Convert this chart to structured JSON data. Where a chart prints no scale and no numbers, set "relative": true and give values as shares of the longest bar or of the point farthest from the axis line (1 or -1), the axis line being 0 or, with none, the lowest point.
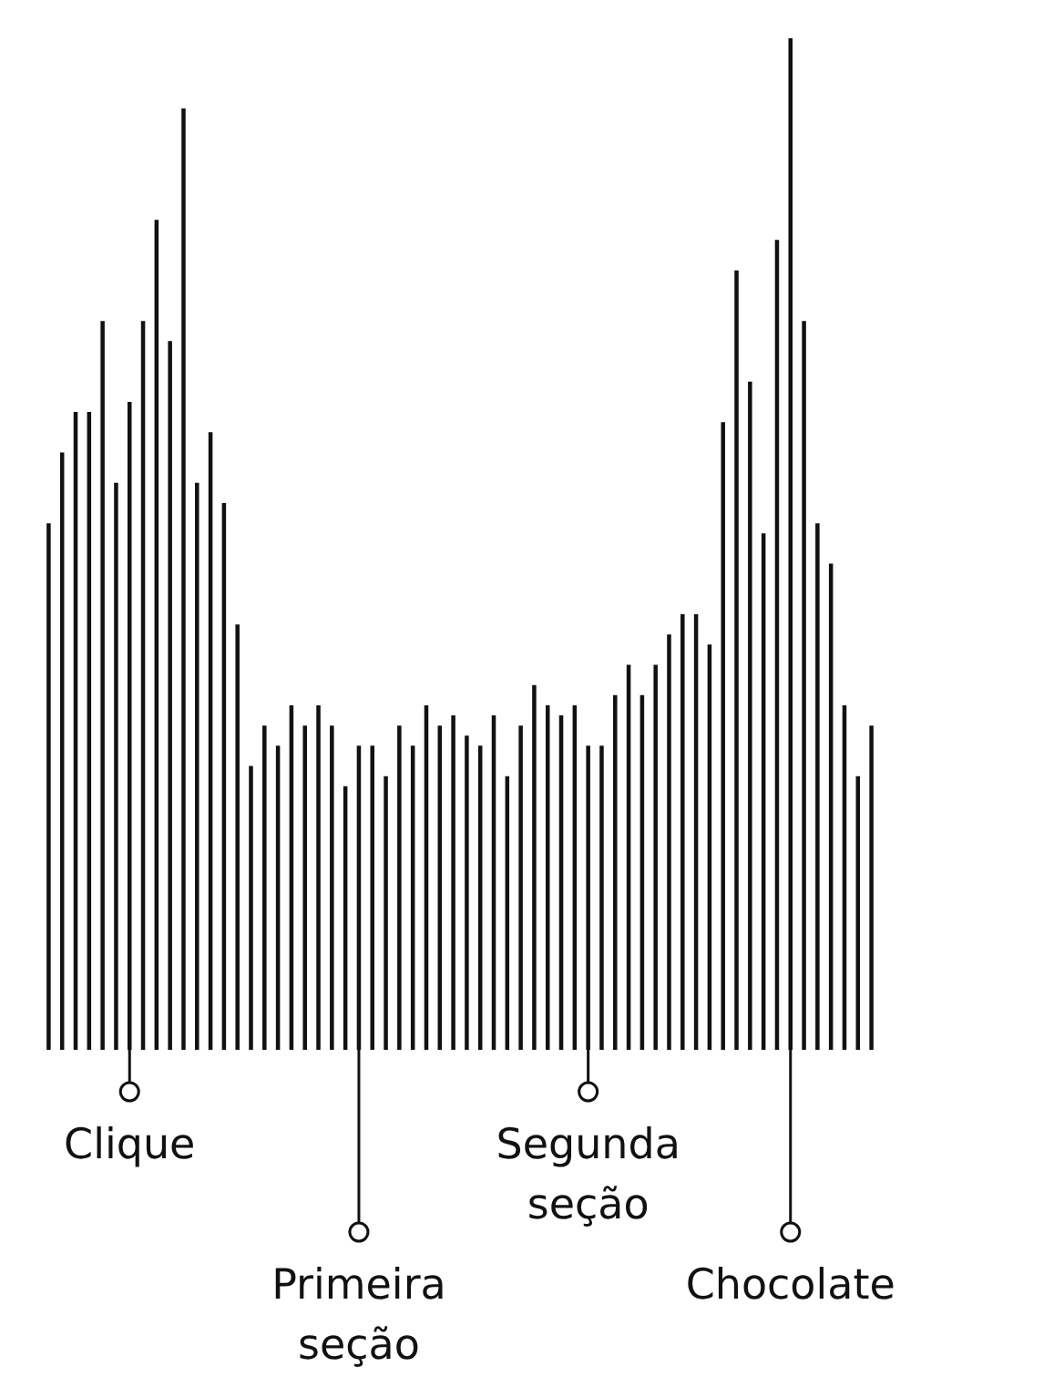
{
  "chart_data": {
    "type": "bar",
    "relative": true,
    "color": "#111111",
    "categories": [
      null,
      null,
      null,
      null,
      null,
      null,
      "Clique",
      null,
      null,
      null,
      null,
      null,
      null,
      null,
      null,
      null,
      null,
      null,
      null,
      null,
      null,
      null,
      null,
      "Primeira seção",
      null,
      null,
      null,
      null,
      null,
      null,
      null,
      null,
      null,
      null,
      null,
      null,
      null,
      null,
      null,
      null,
      "Segunda seção",
      null,
      null,
      null,
      null,
      null,
      null,
      null,
      null,
      null,
      null,
      null,
      null,
      null,
      null,
      "Chocolate",
      null,
      null,
      null,
      null,
      null,
      null
    ],
    "values": [
      0.52,
      0.59,
      0.63,
      0.63,
      0.72,
      0.56,
      0.64,
      0.72,
      0.82,
      0.7,
      0.93,
      0.56,
      0.61,
      0.54,
      0.42,
      0.28,
      0.32,
      0.3,
      0.34,
      0.32,
      0.34,
      0.32,
      0.26,
      0.3,
      0.3,
      0.27,
      0.32,
      0.3,
      0.34,
      0.32,
      0.33,
      0.31,
      0.3,
      0.33,
      0.27,
      0.32,
      0.36,
      0.34,
      0.33,
      0.34,
      0.3,
      0.3,
      0.35,
      0.38,
      0.35,
      0.38,
      0.41,
      0.43,
      0.43,
      0.4,
      0.62,
      0.77,
      0.66,
      0.51,
      0.8,
      1,
      0.72,
      0.52,
      0.48,
      0.34,
      0.27,
      0.32
    ]
  }
}
